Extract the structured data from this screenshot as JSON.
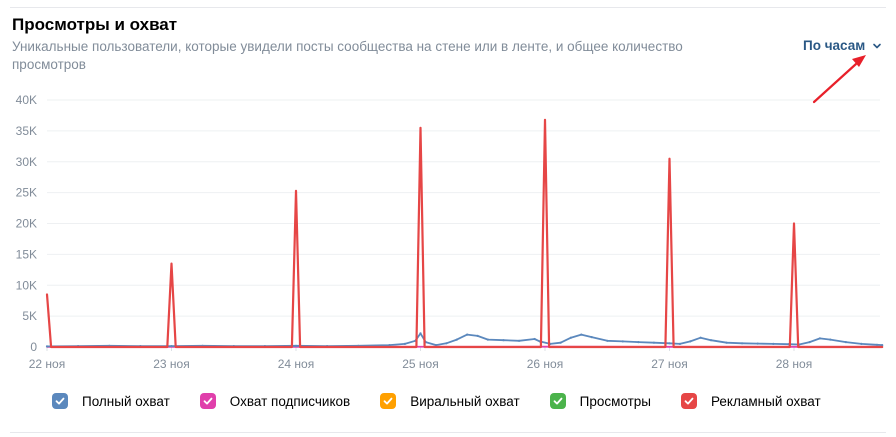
{
  "header": {
    "title": "Просмотры и охват",
    "subtitle": "Уникальные пользователи, которые увидели посты сообщества на стене или в ленте, и общее количество просмотров",
    "period_label": "По часам"
  },
  "colors": {
    "reach": "#5b88bd",
    "subscribers": "#e03fab",
    "viral": "#ffa000",
    "views": "#4bb34b",
    "ads": "#e64646",
    "annotation_arrow": "#e8202a"
  },
  "legend": [
    {
      "key": "reach",
      "label": "Полный охват",
      "color": "#5b88bd"
    },
    {
      "key": "subscribers",
      "label": "Охват подписчиков",
      "color": "#e03fab"
    },
    {
      "key": "viral",
      "label": "Виральный охват",
      "color": "#ffa000"
    },
    {
      "key": "views",
      "label": "Просмотры",
      "color": "#4bb34b"
    },
    {
      "key": "ads",
      "label": "Рекламный охват",
      "color": "#e64646"
    }
  ],
  "chart_data": {
    "type": "line",
    "x_unit": "hour",
    "x_start": "22 ноя 00:00",
    "x_ticks": [
      {
        "label": "22 ноя",
        "hour": 0
      },
      {
        "label": "23 ноя",
        "hour": 24
      },
      {
        "label": "24 ноя",
        "hour": 48
      },
      {
        "label": "25 ноя",
        "hour": 72
      },
      {
        "label": "26 ноя",
        "hour": 96
      },
      {
        "label": "27 ноя",
        "hour": 120
      },
      {
        "label": "28 ноя",
        "hour": 144
      }
    ],
    "y_ticks": [
      {
        "label": "0",
        "value": 0
      },
      {
        "label": "5K",
        "value": 5000
      },
      {
        "label": "10K",
        "value": 10000
      },
      {
        "label": "15K",
        "value": 15000
      },
      {
        "label": "20K",
        "value": 20000
      },
      {
        "label": "25K",
        "value": 25000
      },
      {
        "label": "30K",
        "value": 30000
      },
      {
        "label": "35K",
        "value": 35000
      },
      {
        "label": "40K",
        "value": 40000
      }
    ],
    "ylim": [
      0,
      40000
    ],
    "xlim": [
      0,
      161
    ],
    "grid": true,
    "legend_position": "bottom",
    "series": [
      {
        "key": "ads",
        "name": "Рекламный охват",
        "points": [
          [
            0,
            8500
          ],
          [
            0.8,
            0
          ],
          [
            23.2,
            0
          ],
          [
            24,
            13500
          ],
          [
            24.8,
            0
          ],
          [
            47.2,
            0
          ],
          [
            48,
            25300
          ],
          [
            48.8,
            0
          ],
          [
            71.2,
            0
          ],
          [
            72,
            35500
          ],
          [
            72.8,
            0
          ],
          [
            95.2,
            0
          ],
          [
            96,
            36800
          ],
          [
            96.8,
            0
          ],
          [
            119.2,
            0
          ],
          [
            120,
            30500
          ],
          [
            120.8,
            0
          ],
          [
            143.2,
            0
          ],
          [
            144,
            20000
          ],
          [
            144.8,
            0
          ],
          [
            161,
            0
          ]
        ]
      },
      {
        "key": "reach",
        "name": "Полный охват",
        "points": [
          [
            0,
            100
          ],
          [
            6,
            150
          ],
          [
            12,
            200
          ],
          [
            18,
            150
          ],
          [
            24,
            150
          ],
          [
            30,
            200
          ],
          [
            36,
            150
          ],
          [
            42,
            150
          ],
          [
            48,
            200
          ],
          [
            54,
            150
          ],
          [
            60,
            200
          ],
          [
            66,
            300
          ],
          [
            69,
            500
          ],
          [
            71,
            1000
          ],
          [
            72,
            2200
          ],
          [
            73,
            800
          ],
          [
            75,
            300
          ],
          [
            77,
            600
          ],
          [
            79,
            1200
          ],
          [
            81,
            2000
          ],
          [
            83,
            1800
          ],
          [
            85,
            1200
          ],
          [
            88,
            1100
          ],
          [
            91,
            1000
          ],
          [
            94,
            1300
          ],
          [
            95,
            900
          ],
          [
            97,
            500
          ],
          [
            99,
            700
          ],
          [
            101,
            1500
          ],
          [
            103,
            2000
          ],
          [
            105,
            1600
          ],
          [
            108,
            1000
          ],
          [
            111,
            900
          ],
          [
            114,
            800
          ],
          [
            117,
            700
          ],
          [
            120,
            600
          ],
          [
            122,
            500
          ],
          [
            124,
            900
          ],
          [
            126,
            1500
          ],
          [
            128,
            1100
          ],
          [
            131,
            700
          ],
          [
            134,
            600
          ],
          [
            137,
            550
          ],
          [
            140,
            500
          ],
          [
            143,
            450
          ],
          [
            145,
            400
          ],
          [
            147,
            800
          ],
          [
            149,
            1400
          ],
          [
            151,
            1200
          ],
          [
            154,
            800
          ],
          [
            157,
            500
          ],
          [
            160,
            350
          ],
          [
            161,
            300
          ]
        ]
      },
      {
        "key": "subscribers",
        "name": "Охват подписчиков",
        "points": [
          [
            0,
            30
          ],
          [
            48,
            40
          ],
          [
            96,
            50
          ],
          [
            120,
            40
          ],
          [
            161,
            30
          ]
        ]
      }
    ]
  }
}
